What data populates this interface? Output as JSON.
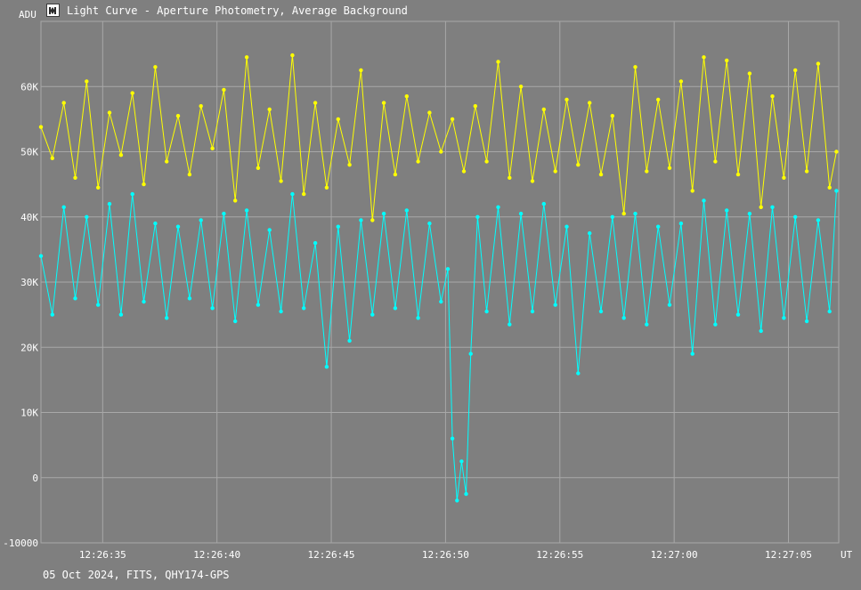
{
  "window": {
    "title": "Light Curve - Aperture Photometry, Average Background",
    "icon": "light-curve-app-icon"
  },
  "footer": {
    "info": "05 Oct 2024, FITS, QHY174-GPS"
  },
  "colors": {
    "background": "#7f7f7f",
    "grid": "#a8a8a8",
    "text": "#ffffff",
    "series_yellow": "#ffff00",
    "series_cyan": "#00ffff"
  },
  "chart_data": {
    "type": "line",
    "ylabel": "ADU",
    "xlabel": "UT",
    "grid": true,
    "ylim": [
      -10000,
      70000
    ],
    "xlim": [
      "12:26:32.3",
      "12:27:07.2"
    ],
    "y_ticks": [
      {
        "value": 60000,
        "label": "60K"
      },
      {
        "value": 50000,
        "label": "50K"
      },
      {
        "value": 40000,
        "label": "40K"
      },
      {
        "value": 30000,
        "label": "30K"
      },
      {
        "value": 20000,
        "label": "20K"
      },
      {
        "value": 10000,
        "label": "10K"
      },
      {
        "value": 0,
        "label": "0"
      },
      {
        "value": -10000,
        "label": "-10000"
      }
    ],
    "x_ticks": [
      {
        "value": "12:26:35",
        "label": "12:26:35"
      },
      {
        "value": "12:26:40",
        "label": "12:26:40"
      },
      {
        "value": "12:26:45",
        "label": "12:26:45"
      },
      {
        "value": "12:26:50",
        "label": "12:26:50"
      },
      {
        "value": "12:26:55",
        "label": "12:26:55"
      },
      {
        "value": "12:27:00",
        "label": "12:27:00"
      },
      {
        "value": "12:27:05",
        "label": "12:27:05"
      }
    ],
    "series": [
      {
        "color": "#ffff00",
        "points": [
          [
            "12:26:32.3",
            53800
          ],
          [
            "12:26:32.8",
            49000
          ],
          [
            "12:26:33.3",
            57500
          ],
          [
            "12:26:33.8",
            46000
          ],
          [
            "12:26:34.3",
            60800
          ],
          [
            "12:26:34.8",
            44500
          ],
          [
            "12:26:35.3",
            56000
          ],
          [
            "12:26:35.8",
            49500
          ],
          [
            "12:26:36.3",
            59000
          ],
          [
            "12:26:36.8",
            45000
          ],
          [
            "12:26:37.3",
            63000
          ],
          [
            "12:26:37.8",
            48500
          ],
          [
            "12:26:38.3",
            55500
          ],
          [
            "12:26:38.8",
            46500
          ],
          [
            "12:26:39.3",
            57000
          ],
          [
            "12:26:39.8",
            50500
          ],
          [
            "12:26:40.3",
            59500
          ],
          [
            "12:26:40.8",
            42500
          ],
          [
            "12:26:41.3",
            64500
          ],
          [
            "12:26:41.8",
            47500
          ],
          [
            "12:26:42.3",
            56500
          ],
          [
            "12:26:42.8",
            45500
          ],
          [
            "12:26:43.3",
            64800
          ],
          [
            "12:26:43.8",
            43500
          ],
          [
            "12:26:44.3",
            57500
          ],
          [
            "12:26:44.8",
            44500
          ],
          [
            "12:26:45.3",
            55000
          ],
          [
            "12:26:45.8",
            48000
          ],
          [
            "12:26:46.3",
            62500
          ],
          [
            "12:26:46.8",
            39500
          ],
          [
            "12:26:47.3",
            57500
          ],
          [
            "12:26:47.8",
            46500
          ],
          [
            "12:26:48.3",
            58500
          ],
          [
            "12:26:48.8",
            48500
          ],
          [
            "12:26:49.3",
            56000
          ],
          [
            "12:26:49.8",
            50000
          ],
          [
            "12:26:50.3",
            55000
          ],
          [
            "12:26:50.8",
            47000
          ],
          [
            "12:26:51.3",
            57000
          ],
          [
            "12:26:51.8",
            48500
          ],
          [
            "12:26:52.3",
            63800
          ],
          [
            "12:26:52.8",
            46000
          ],
          [
            "12:26:53.3",
            60000
          ],
          [
            "12:26:53.8",
            45500
          ],
          [
            "12:26:54.3",
            56500
          ],
          [
            "12:26:54.8",
            47000
          ],
          [
            "12:26:55.3",
            58000
          ],
          [
            "12:26:55.8",
            48000
          ],
          [
            "12:26:56.3",
            57500
          ],
          [
            "12:26:56.8",
            46500
          ],
          [
            "12:26:57.3",
            55500
          ],
          [
            "12:26:57.8",
            40500
          ],
          [
            "12:26:58.3",
            63000
          ],
          [
            "12:26:58.8",
            47000
          ],
          [
            "12:26:59.3",
            58000
          ],
          [
            "12:26:59.8",
            47500
          ],
          [
            "12:27:00.3",
            60800
          ],
          [
            "12:27:00.8",
            44000
          ],
          [
            "12:27:01.3",
            64500
          ],
          [
            "12:27:01.8",
            48500
          ],
          [
            "12:27:02.3",
            64000
          ],
          [
            "12:27:02.8",
            46500
          ],
          [
            "12:27:03.3",
            62000
          ],
          [
            "12:27:03.8",
            41500
          ],
          [
            "12:27:04.3",
            58500
          ],
          [
            "12:27:04.8",
            46000
          ],
          [
            "12:27:05.3",
            62500
          ],
          [
            "12:27:05.8",
            47000
          ],
          [
            "12:27:06.3",
            63500
          ],
          [
            "12:27:06.8",
            44500
          ],
          [
            "12:27:07.1",
            50000
          ]
        ]
      },
      {
        "color": "#00ffff",
        "points": [
          [
            "12:26:32.3",
            34000
          ],
          [
            "12:26:32.8",
            25000
          ],
          [
            "12:26:33.3",
            41500
          ],
          [
            "12:26:33.8",
            27500
          ],
          [
            "12:26:34.3",
            40000
          ],
          [
            "12:26:34.8",
            26500
          ],
          [
            "12:26:35.3",
            42000
          ],
          [
            "12:26:35.8",
            25000
          ],
          [
            "12:26:36.3",
            43500
          ],
          [
            "12:26:36.8",
            27000
          ],
          [
            "12:26:37.3",
            39000
          ],
          [
            "12:26:37.8",
            24500
          ],
          [
            "12:26:38.3",
            38500
          ],
          [
            "12:26:38.8",
            27500
          ],
          [
            "12:26:39.3",
            39500
          ],
          [
            "12:26:39.8",
            26000
          ],
          [
            "12:26:40.3",
            40500
          ],
          [
            "12:26:40.8",
            24000
          ],
          [
            "12:26:41.3",
            41000
          ],
          [
            "12:26:41.8",
            26500
          ],
          [
            "12:26:42.3",
            38000
          ],
          [
            "12:26:42.8",
            25500
          ],
          [
            "12:26:43.3",
            43500
          ],
          [
            "12:26:43.8",
            26000
          ],
          [
            "12:26:44.3",
            36000
          ],
          [
            "12:26:44.8",
            17000
          ],
          [
            "12:26:45.3",
            38500
          ],
          [
            "12:26:45.8",
            21000
          ],
          [
            "12:26:46.3",
            39500
          ],
          [
            "12:26:46.8",
            25000
          ],
          [
            "12:26:47.3",
            40500
          ],
          [
            "12:26:47.8",
            26000
          ],
          [
            "12:26:48.3",
            41000
          ],
          [
            "12:26:48.8",
            24500
          ],
          [
            "12:26:49.3",
            39000
          ],
          [
            "12:26:49.8",
            27000
          ],
          [
            "12:26:50.1",
            32000
          ],
          [
            "12:26:50.3",
            6000
          ],
          [
            "12:26:50.5",
            -3500
          ],
          [
            "12:26:50.7",
            2500
          ],
          [
            "12:26:50.9",
            -2500
          ],
          [
            "12:26:51.1",
            19000
          ],
          [
            "12:26:51.4",
            40000
          ],
          [
            "12:26:51.8",
            25500
          ],
          [
            "12:26:52.3",
            41500
          ],
          [
            "12:26:52.8",
            23500
          ],
          [
            "12:26:53.3",
            40500
          ],
          [
            "12:26:53.8",
            25500
          ],
          [
            "12:26:54.3",
            42000
          ],
          [
            "12:26:54.8",
            26500
          ],
          [
            "12:26:55.3",
            38500
          ],
          [
            "12:26:55.8",
            16000
          ],
          [
            "12:26:56.3",
            37500
          ],
          [
            "12:26:56.8",
            25500
          ],
          [
            "12:26:57.3",
            40000
          ],
          [
            "12:26:57.8",
            24500
          ],
          [
            "12:26:58.3",
            40500
          ],
          [
            "12:26:58.8",
            23500
          ],
          [
            "12:26:59.3",
            38500
          ],
          [
            "12:26:59.8",
            26500
          ],
          [
            "12:27:00.3",
            39000
          ],
          [
            "12:27:00.8",
            19000
          ],
          [
            "12:27:01.3",
            42500
          ],
          [
            "12:27:01.8",
            23500
          ],
          [
            "12:27:02.3",
            41000
          ],
          [
            "12:27:02.8",
            25000
          ],
          [
            "12:27:03.3",
            40500
          ],
          [
            "12:27:03.8",
            22500
          ],
          [
            "12:27:04.3",
            41500
          ],
          [
            "12:27:04.8",
            24500
          ],
          [
            "12:27:05.3",
            40000
          ],
          [
            "12:27:05.8",
            24000
          ],
          [
            "12:27:06.3",
            39500
          ],
          [
            "12:27:06.8",
            25500
          ],
          [
            "12:27:07.1",
            44000
          ]
        ]
      }
    ]
  }
}
